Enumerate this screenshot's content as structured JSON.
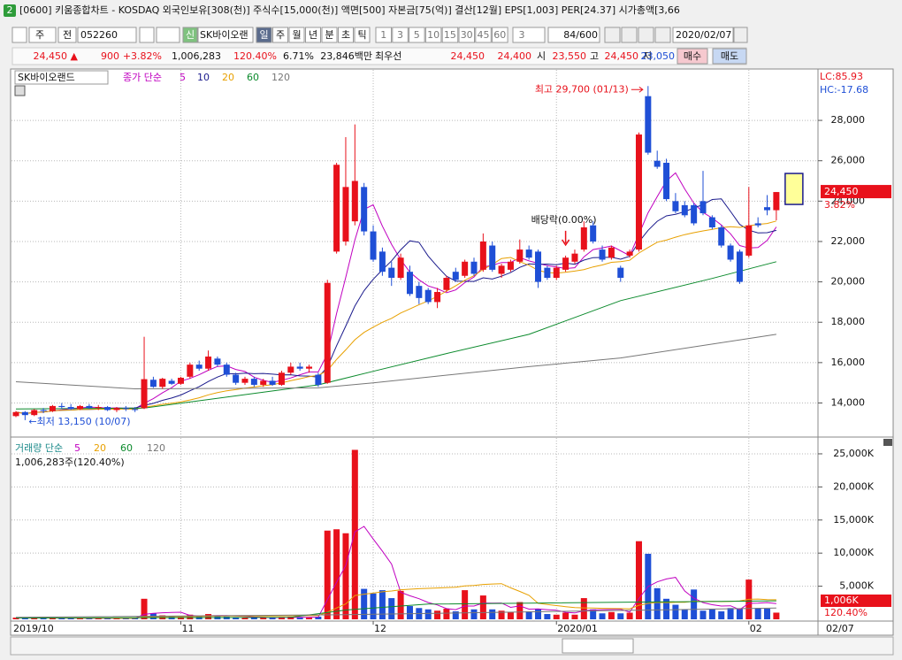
{
  "window": {
    "icon": "2",
    "title": "[0600] 키움종합차트 - KOSDAQ 외국인보유[308(천)] 주식수[15,000(천)] 액면[500] 자본금[75(억)] 결산[12월] EPS[1,003] PER[24.37] 시가총액[3,66"
  },
  "toolbar": {
    "period_kind": "주",
    "compare": "전",
    "code": "052260",
    "tag": "신",
    "name": "SK바이오랜",
    "periods": [
      "일",
      "주",
      "월",
      "년",
      "분",
      "초",
      "틱"
    ],
    "intervals": [
      "1",
      "3",
      "5",
      "10",
      "15",
      "30",
      "45",
      "60"
    ],
    "interval_count": "3",
    "count": "84/600",
    "date": "2020/02/07"
  },
  "quote": {
    "price": "24,450 ▲",
    "change": "900",
    "change_pct": "+3.82%",
    "volume": "1,006,283",
    "volume_ratio": "120.40%",
    "turnover": "6.71%",
    "amount": "23,846백만",
    "best": "최우선",
    "ask": "24,450",
    "bid": "24,400",
    "open_label": "시",
    "open": "23,550",
    "high_label": "고",
    "high": "24,450",
    "low_label": "저",
    "low": "23,050",
    "buy": "매수",
    "sell": "매도"
  },
  "chart_data": {
    "type": "candlestick",
    "name": "SK바이오랜드",
    "ma_label": "종가 단순",
    "lc": "LC:85.93",
    "hc": "HC:-17.68",
    "high_note": "최고 29,700 (01/13)",
    "low_note": "←최저 13,150 (10/07)",
    "dividend_note": "배당락(0.00%)",
    "up_color": "#e8111b",
    "down_color": "#1f4fd6",
    "categories": [
      "2019/10",
      null,
      null,
      null,
      null,
      null,
      null,
      null,
      null,
      null,
      null,
      null,
      null,
      null,
      null,
      null,
      null,
      null,
      "11",
      null,
      null,
      null,
      null,
      null,
      null,
      null,
      null,
      null,
      null,
      null,
      null,
      null,
      null,
      null,
      null,
      null,
      null,
      null,
      null,
      "12",
      null,
      null,
      null,
      null,
      null,
      null,
      null,
      null,
      null,
      null,
      null,
      null,
      null,
      null,
      null,
      null,
      null,
      null,
      null,
      "2020/01",
      null,
      null,
      null,
      null,
      null,
      null,
      null,
      null,
      null,
      null,
      null,
      null,
      null,
      null,
      null,
      null,
      null,
      null,
      null,
      null,
      "02",
      null,
      null,
      null
    ],
    "last_date": "02/07",
    "ohlc": [
      [
        13350,
        13600,
        13300,
        13550
      ],
      [
        13550,
        13600,
        13150,
        13400
      ],
      [
        13400,
        13700,
        13350,
        13650
      ],
      [
        13650,
        13750,
        13500,
        13600
      ],
      [
        13600,
        13900,
        13550,
        13850
      ],
      [
        13850,
        14000,
        13700,
        13800
      ],
      [
        13800,
        13950,
        13650,
        13700
      ],
      [
        13700,
        13900,
        13650,
        13850
      ],
      [
        13850,
        13950,
        13700,
        13750
      ],
      [
        13750,
        13900,
        13650,
        13800
      ],
      [
        13800,
        13850,
        13600,
        13650
      ],
      [
        13650,
        13800,
        13550,
        13750
      ],
      [
        13750,
        13850,
        13600,
        13700
      ],
      [
        13700,
        13800,
        13550,
        13650
      ],
      [
        13740,
        17280,
        13700,
        15180
      ],
      [
        15150,
        15300,
        14750,
        14800
      ],
      [
        14800,
        15250,
        14700,
        15200
      ],
      [
        15100,
        15200,
        14900,
        14950
      ],
      [
        14950,
        15300,
        14900,
        15250
      ],
      [
        15300,
        16000,
        15200,
        15900
      ],
      [
        15900,
        16100,
        15600,
        15700
      ],
      [
        15700,
        16600,
        15600,
        16300
      ],
      [
        16200,
        16300,
        15800,
        15900
      ],
      [
        15900,
        16000,
        15300,
        15400
      ],
      [
        15400,
        15500,
        14900,
        15000
      ],
      [
        15000,
        15300,
        14900,
        15200
      ],
      [
        15200,
        15300,
        14800,
        14900
      ],
      [
        14900,
        15200,
        14800,
        15100
      ],
      [
        15100,
        15300,
        14850,
        14900
      ],
      [
        14900,
        15600,
        14850,
        15500
      ],
      [
        15500,
        16000,
        15400,
        15800
      ],
      [
        15800,
        16000,
        15600,
        15700
      ],
      [
        15700,
        15900,
        15500,
        15800
      ],
      [
        15400,
        15500,
        14800,
        14900
      ],
      [
        15000,
        20100,
        14950,
        19950
      ],
      [
        21500,
        25900,
        21400,
        25800
      ],
      [
        22000,
        27170,
        21800,
        24700
      ],
      [
        23000,
        27800,
        22800,
        25000
      ],
      [
        24700,
        24900,
        22300,
        22500
      ],
      [
        22500,
        22800,
        21000,
        21100
      ],
      [
        21500,
        21700,
        20300,
        20500
      ],
      [
        20700,
        21000,
        19800,
        20200
      ],
      [
        20200,
        21400,
        20100,
        21200
      ],
      [
        20500,
        20800,
        19300,
        19400
      ],
      [
        19800,
        20000,
        18900,
        19200
      ],
      [
        19600,
        19700,
        18900,
        19000
      ],
      [
        19000,
        19700,
        18700,
        19500
      ],
      [
        19600,
        20300,
        19500,
        20200
      ],
      [
        20500,
        20700,
        20000,
        20100
      ],
      [
        20300,
        21100,
        20200,
        21000
      ],
      [
        21000,
        21200,
        20300,
        20400
      ],
      [
        20600,
        22400,
        20500,
        22000
      ],
      [
        21800,
        22000,
        20500,
        20600
      ],
      [
        20400,
        20900,
        20200,
        20800
      ],
      [
        20600,
        21100,
        20500,
        21000
      ],
      [
        21000,
        22100,
        20900,
        21600
      ],
      [
        21600,
        21800,
        21100,
        21200
      ],
      [
        21500,
        21600,
        19700,
        20000
      ],
      [
        20700,
        20800,
        20100,
        20200
      ],
      [
        20200,
        20800,
        20100,
        20700
      ],
      [
        20600,
        21300,
        20500,
        21200
      ],
      [
        21000,
        21600,
        20900,
        21400
      ],
      [
        21600,
        23000,
        21500,
        22700
      ],
      [
        22800,
        23000,
        21900,
        22000
      ],
      [
        21600,
        21800,
        21000,
        21100
      ],
      [
        21200,
        21800,
        21100,
        21700
      ],
      [
        20700,
        20800,
        20000,
        20200
      ],
      [
        21300,
        21600,
        21200,
        21500
      ],
      [
        21600,
        27400,
        21500,
        27300
      ],
      [
        29200,
        29700,
        26300,
        26400
      ],
      [
        26000,
        26500,
        25600,
        25700
      ],
      [
        25900,
        26100,
        24000,
        24100
      ],
      [
        24000,
        24400,
        23400,
        23500
      ],
      [
        23800,
        24000,
        23200,
        23300
      ],
      [
        23800,
        23900,
        22800,
        22900
      ],
      [
        24000,
        25500,
        23300,
        23400
      ],
      [
        23200,
        23300,
        22600,
        22700
      ],
      [
        22700,
        22800,
        21700,
        21800
      ],
      [
        21800,
        21900,
        21000,
        21100
      ],
      [
        21500,
        21600,
        19900,
        20000
      ],
      [
        21300,
        24700,
        21200,
        22800
      ],
      [
        22900,
        23200,
        22700,
        22800
      ],
      [
        23700,
        24300,
        23300,
        23550
      ],
      [
        23550,
        24450,
        23050,
        24450
      ]
    ],
    "ylim": [
      12400,
      29800
    ],
    "yticks": [
      {
        "value": 14000,
        "label": "14,000"
      },
      {
        "value": 16000,
        "label": "16,000"
      },
      {
        "value": 18000,
        "label": "18,000"
      },
      {
        "value": 20000,
        "label": "20,000"
      },
      {
        "value": 22000,
        "label": "22,000"
      },
      {
        "value": 24000,
        "label": "24,000"
      },
      {
        "value": 26000,
        "label": "26,000"
      },
      {
        "value": 28000,
        "label": "28,000"
      }
    ],
    "ma_legend": [
      {
        "name": "5",
        "color": "#c000c0"
      },
      {
        "name": "10",
        "color": "#1a1a8c"
      },
      {
        "name": "20",
        "color": "#e8a000"
      },
      {
        "name": "60",
        "color": "#0b8a2c",
        "x": [
          0,
          14,
          33,
          39,
          47,
          56,
          66,
          76,
          83
        ],
        "values": [
          13700,
          13750,
          14900,
          15570,
          16450,
          17400,
          19070,
          20170,
          21000
        ]
      },
      {
        "name": "120",
        "color": "#777777",
        "x": [
          0,
          13,
          33,
          39,
          56,
          66,
          83
        ],
        "values": [
          15050,
          14700,
          14750,
          15000,
          15800,
          16230,
          17400
        ]
      }
    ],
    "last_label": "24,450",
    "last_change": "3.82%",
    "volume": {
      "label": "거래량 단순",
      "summary": "1,006,283주(120.40%)",
      "values": [
        250,
        200,
        150,
        180,
        220,
        200,
        170,
        160,
        150,
        170,
        140,
        160,
        150,
        170,
        3100,
        900,
        600,
        400,
        350,
        700,
        450,
        800,
        500,
        400,
        300,
        250,
        300,
        250,
        200,
        350,
        400,
        300,
        250,
        400,
        13400,
        13600,
        13000,
        25600,
        4600,
        3900,
        4400,
        3200,
        4300,
        2000,
        1700,
        1500,
        1300,
        1600,
        1200,
        4400,
        1500,
        3600,
        1500,
        1300,
        1100,
        2600,
        1200,
        1600,
        800,
        700,
        1000,
        700,
        3200,
        1500,
        900,
        1100,
        900,
        1000,
        11800,
        9900,
        4700,
        3100,
        2200,
        1500,
        4500,
        1300,
        1500,
        1200,
        1700,
        1600,
        6000,
        1700,
        1600,
        1006.283
      ],
      "ylim": [
        0,
        27000
      ],
      "yticks": [
        {
          "value": 5000,
          "label": "5,000K"
        },
        {
          "value": 10000,
          "label": "10,000K"
        },
        {
          "value": 15000,
          "label": "15,000K"
        },
        {
          "value": 20000,
          "label": "20,000K"
        },
        {
          "value": 25000,
          "label": "25,000K"
        }
      ],
      "ma_legend": [
        {
          "name": "5",
          "color": "#c000c0"
        },
        {
          "name": "20",
          "color": "#e8a000"
        },
        {
          "name": "60",
          "color": "#0b8a2c",
          "x": [
            0,
            30,
            36,
            45,
            83
          ],
          "values": [
            200,
            300,
            1400,
            2300,
            2800
          ]
        },
        {
          "name": "120",
          "color": "#777777",
          "x": [
            0,
            36,
            83
          ],
          "values": [
            300,
            700,
            1700
          ]
        }
      ],
      "last_label": "1,006K",
      "last_ratio": "120.40%"
    }
  }
}
